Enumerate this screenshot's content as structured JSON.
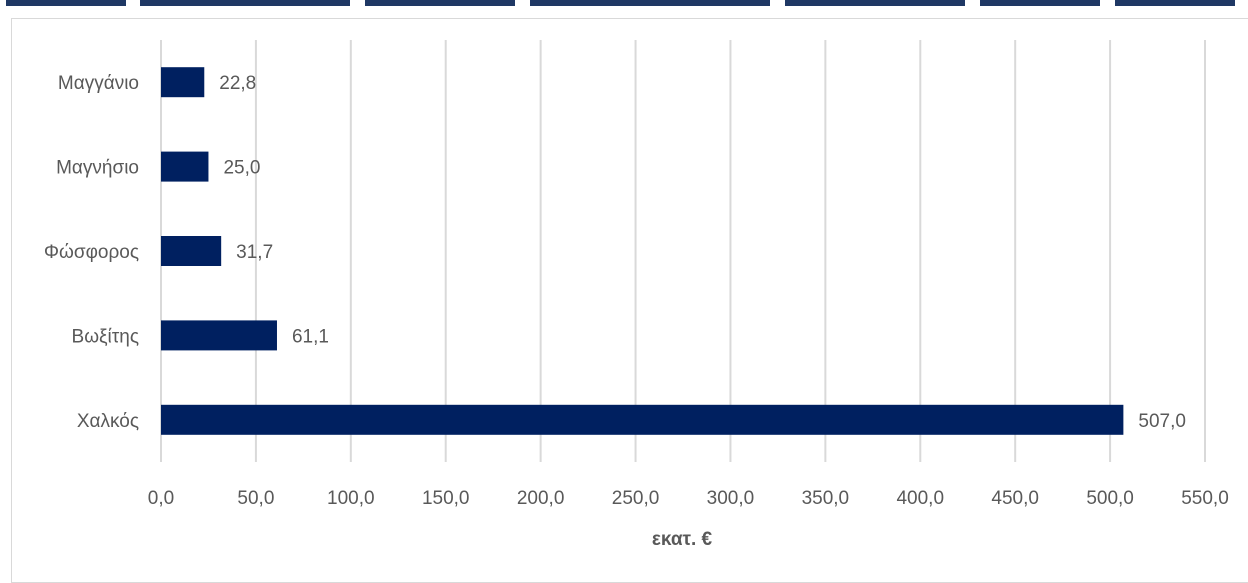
{
  "chart_data": {
    "type": "bar",
    "orientation": "horizontal",
    "categories": [
      "Μαγγάνιο",
      "Μαγνήσιο",
      "Φώσφορος",
      "Βωξίτης",
      "Χαλκός"
    ],
    "values": [
      22.8,
      25.0,
      31.7,
      61.1,
      507.0
    ],
    "value_labels": [
      "22,8",
      "25,0",
      "31,7",
      "61,1",
      "507,0"
    ],
    "xlabel": "εκατ. €",
    "ylabel": "",
    "xlim": [
      0,
      550
    ],
    "x_ticks": [
      0,
      50,
      100,
      150,
      200,
      250,
      300,
      350,
      400,
      450,
      500,
      550
    ],
    "x_tick_labels": [
      "0,0",
      "50,0",
      "100,0",
      "150,0",
      "200,0",
      "250,0",
      "300,0",
      "350,0",
      "400,0",
      "450,0",
      "500,0",
      "550,0"
    ],
    "grid": "vertical",
    "legend": "none",
    "bar_color": "#002060",
    "grid_color": "#d9d9d9",
    "text_color": "#595959"
  },
  "colors": {
    "title_strip": "#1f3864"
  }
}
